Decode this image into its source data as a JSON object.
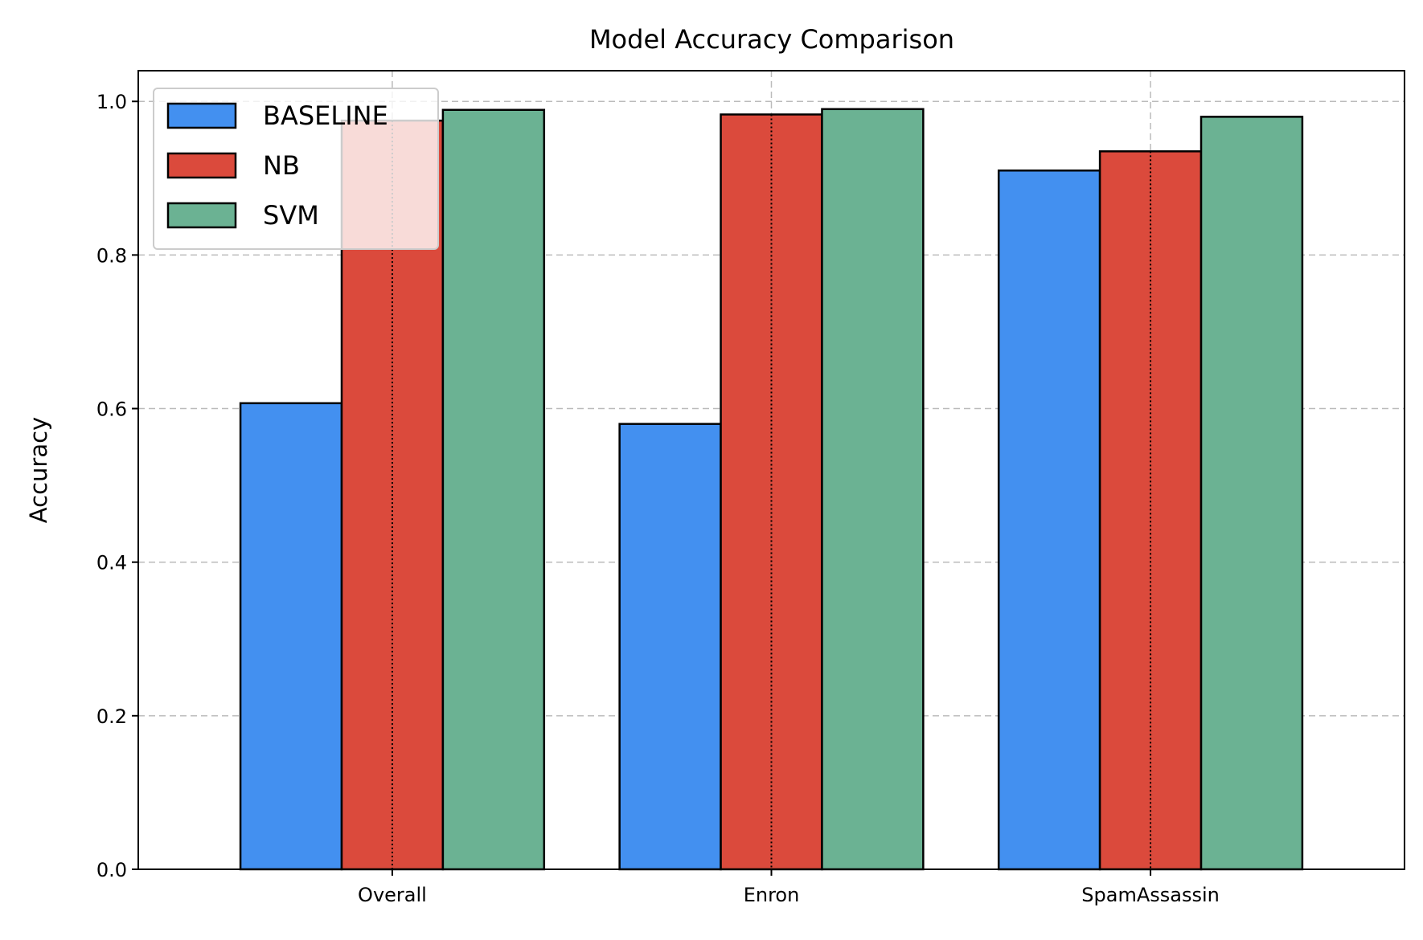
{
  "chart_data": {
    "type": "bar",
    "title": "Model Accuracy Comparison",
    "xlabel": "",
    "ylabel": "Accuracy",
    "categories": [
      "Overall",
      "Enron",
      "SpamAssassin"
    ],
    "series": [
      {
        "name": "BASELINE",
        "color": "#4390F0",
        "values": [
          0.607,
          0.58,
          0.91
        ]
      },
      {
        "name": "NB",
        "color": "#DB4A3C",
        "values": [
          0.975,
          0.983,
          0.935
        ]
      },
      {
        "name": "SVM",
        "color": "#6BB293",
        "values": [
          0.989,
          0.99,
          0.98
        ]
      }
    ],
    "ylim": [
      0,
      1.04
    ],
    "yticks": [
      0.0,
      0.2,
      0.4,
      0.6,
      0.8,
      1.0
    ],
    "ytick_labels": [
      "0.0",
      "0.2",
      "0.4",
      "0.6",
      "0.8",
      "1.0"
    ],
    "grid": true,
    "legend_position": "top-left"
  }
}
